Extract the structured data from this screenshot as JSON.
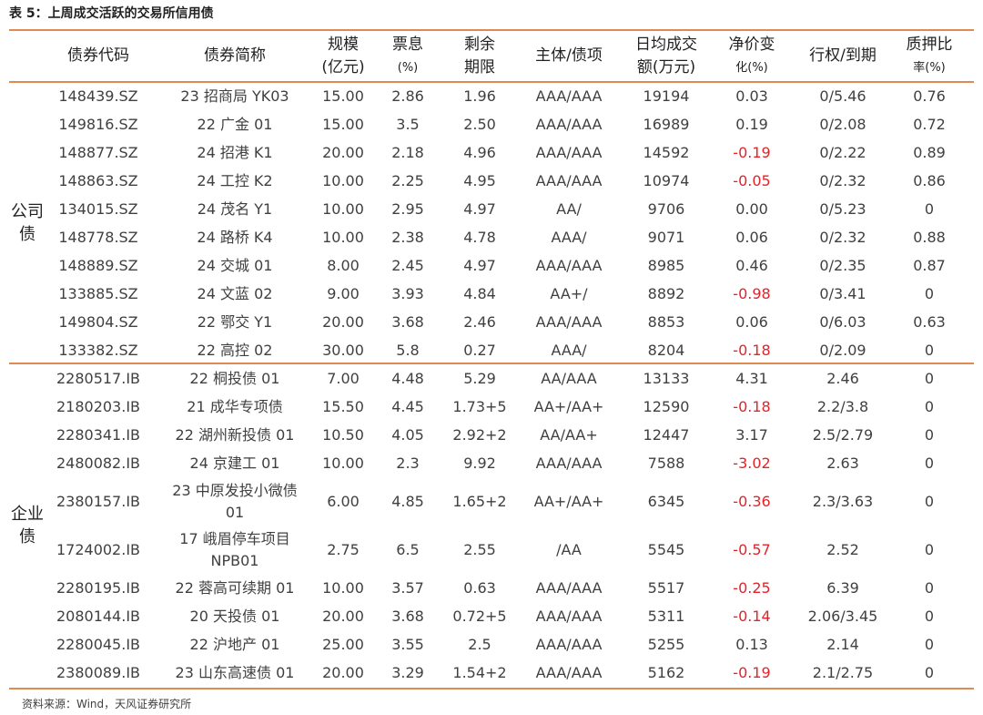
{
  "title": "表 5：上周成交活跃的交易所信用债",
  "headers": [
    {
      "main": "债券代码",
      "sub": ""
    },
    {
      "main": "债券简称",
      "sub": ""
    },
    {
      "main": "规模",
      "sub": "(亿元)"
    },
    {
      "main": "票息",
      "sub": "(%)"
    },
    {
      "main": "剩余",
      "sub": "期限"
    },
    {
      "main": "主体/债项",
      "sub": ""
    },
    {
      "main": "日均成交",
      "sub": "额(万元)"
    },
    {
      "main": "净价变",
      "sub": "化(%)"
    },
    {
      "main": "行权/到期",
      "sub": ""
    },
    {
      "main": "质押比",
      "sub": "率(%)"
    }
  ],
  "sections": [
    {
      "label": "公司债",
      "rows": [
        [
          "148439.SZ",
          "23 招商局 YK03",
          "15.00",
          "2.86",
          "1.96",
          "AAA/AAA",
          "19194",
          "0.03",
          "0/5.46",
          "0.76"
        ],
        [
          "149816.SZ",
          "22 广金 01",
          "15.00",
          "3.5",
          "2.50",
          "AAA/AAA",
          "16989",
          "0.19",
          "0/2.08",
          "0.72"
        ],
        [
          "148877.SZ",
          "24 招港 K1",
          "20.00",
          "2.18",
          "4.96",
          "AAA/AAA",
          "14592",
          "-0.19",
          "0/2.22",
          "0.89"
        ],
        [
          "148863.SZ",
          "24 工控 K2",
          "10.00",
          "2.25",
          "4.95",
          "AAA/AAA",
          "10974",
          "-0.05",
          "0/2.32",
          "0.86"
        ],
        [
          "134015.SZ",
          "24 茂名 Y1",
          "10.00",
          "2.95",
          "4.97",
          "AA/",
          "9706",
          "0.00",
          "0/5.23",
          "0"
        ],
        [
          "148778.SZ",
          "24 路桥 K4",
          "10.00",
          "2.38",
          "4.78",
          "AAA/",
          "9071",
          "0.06",
          "0/2.32",
          "0.88"
        ],
        [
          "148889.SZ",
          "24 交城 01",
          "8.00",
          "2.45",
          "4.97",
          "AAA/AAA",
          "8985",
          "0.46",
          "0/2.35",
          "0.87"
        ],
        [
          "133885.SZ",
          "24 文蓝 02",
          "9.00",
          "3.93",
          "4.84",
          "AA+/",
          "8892",
          "-0.98",
          "0/3.41",
          "0"
        ],
        [
          "149804.SZ",
          "22 鄂交 Y1",
          "20.00",
          "3.68",
          "2.46",
          "AAA/AAA",
          "8853",
          "0.06",
          "0/6.03",
          "0.63"
        ],
        [
          "133382.SZ",
          "22 高控 02",
          "30.00",
          "5.8",
          "0.27",
          "AAA/",
          "8204",
          "-0.18",
          "0/2.09",
          "0"
        ]
      ]
    },
    {
      "label": "企业债",
      "rows": [
        [
          "2280517.IB",
          "22 桐投债 01",
          "7.00",
          "4.48",
          "5.29",
          "AA/AAA",
          "13133",
          "4.31",
          "2.46",
          "0"
        ],
        [
          "2180203.IB",
          "21 成华专项债",
          "15.50",
          "4.45",
          "1.73+5",
          "AA+/AA+",
          "12590",
          "-0.18",
          "2.2/3.8",
          "0"
        ],
        [
          "2280341.IB",
          "22 湖州新投债 01",
          "10.50",
          "4.05",
          "2.92+2",
          "AA/AA+",
          "12447",
          "3.17",
          "2.5/2.79",
          "0"
        ],
        [
          "2480082.IB",
          "24 京建工 01",
          "10.00",
          "2.3",
          "9.92",
          "AAA/AAA",
          "7588",
          "-3.02",
          "2.63",
          "0"
        ],
        [
          "2380157.IB",
          "23 中原发投小微债 01",
          "6.00",
          "4.85",
          "1.65+2",
          "AA+/AA+",
          "6345",
          "-0.36",
          "2.3/3.63",
          "0"
        ],
        [
          "1724002.IB",
          "17 峨眉停车项目 NPB01",
          "2.75",
          "6.5",
          "2.55",
          "/AA",
          "5545",
          "-0.57",
          "2.52",
          "0"
        ],
        [
          "2280195.IB",
          "22 蓉高可续期 01",
          "10.00",
          "3.57",
          "0.63",
          "AAA/AAA",
          "5517",
          "-0.25",
          "6.39",
          "0"
        ],
        [
          "2080144.IB",
          "20 天投债 01",
          "20.00",
          "3.68",
          "0.72+5",
          "AAA/AAA",
          "5311",
          "-0.14",
          "2.06/3.45",
          "0"
        ],
        [
          "2280045.IB",
          "22 沪地产 01",
          "25.00",
          "3.55",
          "2.5",
          "AAA/AAA",
          "5255",
          "0.13",
          "2.14",
          "0"
        ],
        [
          "2380089.IB",
          "23 山东高速债 01",
          "20.00",
          "3.29",
          "1.54+2",
          "AAA/AAA",
          "5162",
          "-0.19",
          "2.1/2.75",
          "0"
        ]
      ]
    }
  ],
  "footer": "资料来源：Wind，天风证券研究所",
  "colors": {
    "rule": "#e08a50",
    "negative": "#e0242a",
    "text": "#404040"
  }
}
